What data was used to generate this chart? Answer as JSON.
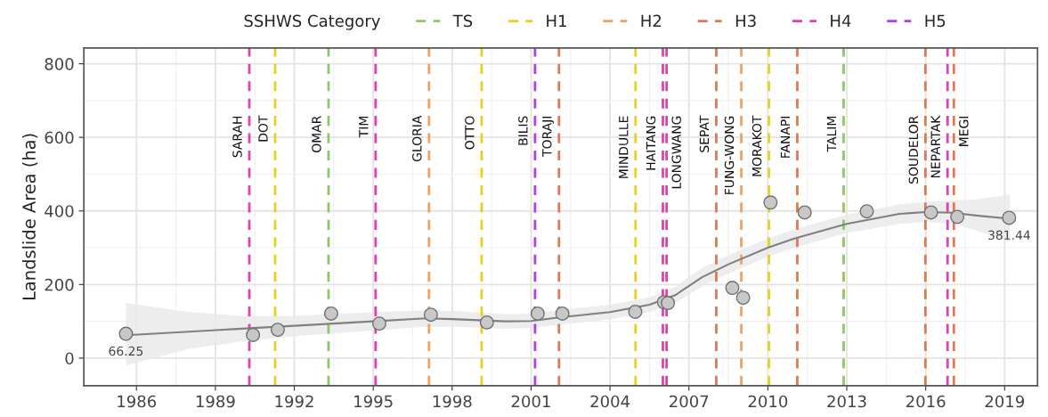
{
  "chart_data": {
    "type": "scatter",
    "ylabel": "Landslide Area (ha)",
    "legend_title": "SSHWS Category",
    "legend": "top",
    "grid": true,
    "marker": "circle",
    "xlim": [
      1984.0,
      2020.25
    ],
    "xticks": [
      1986,
      1989,
      1992,
      1995,
      1998,
      2001,
      2004,
      2007,
      2010,
      2013,
      2016,
      2019
    ],
    "ylim": [
      -75,
      843
    ],
    "yticks": [
      0,
      200,
      400,
      600,
      800
    ],
    "series": [
      {
        "type": "line",
        "color": "#808080",
        "line_style": "solid",
        "marker": "none",
        "x": [
          1985.6,
          1988,
          1990,
          1992,
          1995,
          1997,
          1998,
          1999,
          2000,
          2001,
          2002,
          2004,
          2005.5,
          2006.5,
          2007.5,
          2008.5,
          2010,
          2011,
          2013,
          2015,
          2016,
          2017,
          2018,
          2019.2
        ],
        "values": [
          62,
          72,
          80,
          88,
          100,
          108,
          106,
          103,
          100,
          101,
          110,
          125,
          145,
          172,
          220,
          255,
          300,
          325,
          365,
          392,
          397,
          395,
          387,
          379
        ],
        "lower": [
          -20,
          25,
          45,
          60,
          75,
          85,
          85,
          83,
          80,
          82,
          90,
          105,
          125,
          150,
          195,
          230,
          275,
          300,
          340,
          365,
          370,
          365,
          345,
          315
        ],
        "upper": [
          150,
          125,
          115,
          115,
          125,
          130,
          128,
          124,
          120,
          121,
          130,
          145,
          165,
          195,
          245,
          280,
          325,
          350,
          390,
          418,
          425,
          428,
          432,
          445
        ]
      },
      {
        "color": "#c8c8c8",
        "x": [
          1985.6,
          1990.43,
          1991.37,
          1993.4,
          1995.23,
          1997.19,
          1999.32,
          2001.25,
          2002.19,
          2004.96,
          2006.05,
          2006.2,
          2008.65,
          2009.06,
          2010.1,
          2011.4,
          2013.76,
          2016.2,
          2017.2,
          2019.17
        ],
        "values": [
          66.25,
          63,
          77,
          121,
          94,
          118,
          97,
          121,
          121,
          126,
          152,
          150,
          191,
          164,
          423,
          396,
          399,
          396,
          384,
          381.44
        ],
        "value_labels": [
          "66.25",
          null,
          null,
          null,
          null,
          null,
          null,
          null,
          null,
          null,
          null,
          null,
          null,
          null,
          null,
          null,
          null,
          null,
          null,
          "381.44"
        ]
      },
      {
        "type": "line",
        "name": "TS",
        "color": "#8cc864",
        "line_style": "dashed"
      },
      {
        "type": "line",
        "name": "H1",
        "color": "#e8d020",
        "line_style": "dashed"
      },
      {
        "type": "line",
        "name": "H2",
        "color": "#f0a060",
        "line_style": "dashed"
      },
      {
        "type": "line",
        "name": "H3",
        "color": "#e07850",
        "line_style": "dashed"
      },
      {
        "type": "line",
        "name": "H4",
        "color": "#e040b0",
        "line_style": "dashed"
      },
      {
        "type": "line",
        "name": "H5",
        "color": "#b040e0",
        "line_style": "dashed"
      }
    ],
    "ref_lines": [
      {
        "axis": "x",
        "value": 1990.29,
        "label": "SARAH",
        "color": "#e040b0",
        "line_style": "dashed"
      },
      {
        "axis": "x",
        "value": 1991.27,
        "label": "DOT",
        "color": "#e8d020",
        "line_style": "dashed"
      },
      {
        "axis": "x",
        "value": 1993.3,
        "label": "OMAR",
        "color": "#8cc864",
        "line_style": "dashed"
      },
      {
        "axis": "x",
        "value": 1995.09,
        "label": "TIM",
        "color": "#e040b0",
        "line_style": "dashed"
      },
      {
        "axis": "x",
        "value": 1997.12,
        "label": "GLORIA",
        "color": "#f0a060",
        "line_style": "dashed"
      },
      {
        "axis": "x",
        "value": 1999.12,
        "label": "OTTO",
        "color": "#e8d020",
        "line_style": "dashed"
      },
      {
        "axis": "x",
        "value": 2001.15,
        "label": "BILIS",
        "color": "#b040e0",
        "line_style": "dashed"
      },
      {
        "axis": "x",
        "value": 2002.06,
        "label": "TORAJI",
        "color": "#e07850",
        "line_style": "dashed"
      },
      {
        "axis": "x",
        "value": 2004.97,
        "label": "MINDULLE",
        "color": "#e8d020",
        "line_style": "dashed"
      },
      {
        "axis": "x",
        "value": 2006.01,
        "label": "HAITANG",
        "color": "#e040b0",
        "line_style": "dashed"
      },
      {
        "axis": "x",
        "value": 2006.15,
        "label": "LONGWANG",
        "color": "#e040b0",
        "line_style": "dashed"
      },
      {
        "axis": "x",
        "value": 2008.04,
        "label": "SEPAT",
        "color": "#e07850",
        "line_style": "dashed"
      },
      {
        "axis": "x",
        "value": 2008.99,
        "label": "FUNG-WONG",
        "color": "#f0a060",
        "line_style": "dashed"
      },
      {
        "axis": "x",
        "value": 2010.04,
        "label": "MORAKOT",
        "color": "#e8d020",
        "line_style": "dashed"
      },
      {
        "axis": "x",
        "value": 2011.12,
        "label": "FANAPI",
        "color": "#e07850",
        "line_style": "dashed"
      },
      {
        "axis": "x",
        "value": 2012.88,
        "label": "TALIM",
        "color": "#8cc864",
        "line_style": "dashed"
      },
      {
        "axis": "x",
        "value": 2015.99,
        "label": "SOUDELOR",
        "color": "#e07850",
        "line_style": "dashed"
      },
      {
        "axis": "x",
        "value": 2016.83,
        "label": "NEPARTAK",
        "color": "#e040b0",
        "line_style": "dashed"
      },
      {
        "axis": "x",
        "value": 2017.07,
        "label": "MEGI",
        "color": "#e07850",
        "line_style": "dashed"
      }
    ]
  }
}
